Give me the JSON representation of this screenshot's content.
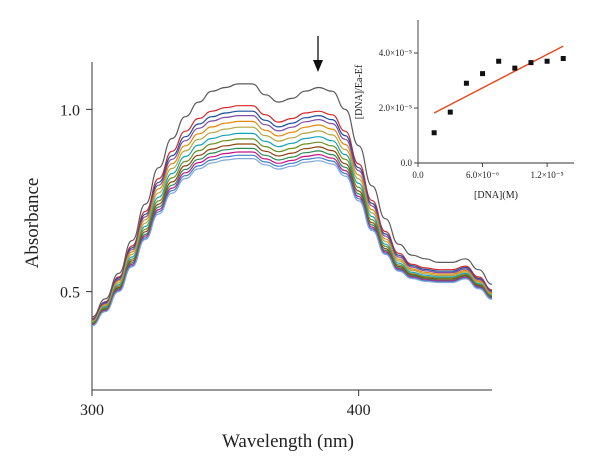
{
  "chart_data": [
    {
      "type": "line",
      "xlabel": "Wavelength (nm)",
      "ylabel": "Absorbance",
      "xlim": [
        300,
        450
      ],
      "ylim": [
        0.23,
        1.13
      ],
      "x_ticks": [
        {
          "value": 300,
          "label": "300"
        },
        {
          "value": 400,
          "label": "400"
        }
      ],
      "y_ticks": [
        {
          "value": 0.5,
          "label": "0.5"
        },
        {
          "value": 1.0,
          "label": "1.0"
        }
      ],
      "annotation": {
        "type": "arrow-down",
        "x": 385,
        "meaning": "absorbance decreases with added DNA"
      },
      "x": [
        300,
        305,
        310,
        315,
        320,
        325,
        330,
        335,
        340,
        345,
        350,
        355,
        360,
        365,
        370,
        375,
        380,
        385,
        390,
        395,
        400,
        405,
        410,
        415,
        420,
        425,
        430,
        435,
        440,
        445,
        450
      ],
      "series": [
        {
          "color": "#5b5b5b",
          "values": [
            0.43,
            0.48,
            0.55,
            0.64,
            0.74,
            0.84,
            0.92,
            0.98,
            1.02,
            1.05,
            1.06,
            1.07,
            1.07,
            1.04,
            1.02,
            1.03,
            1.05,
            1.06,
            1.05,
            1.0,
            0.9,
            0.79,
            0.7,
            0.63,
            0.6,
            0.59,
            0.58,
            0.58,
            0.59,
            0.56,
            0.52
          ]
        },
        {
          "color": "#d62728",
          "values": [
            0.425,
            0.472,
            0.54,
            0.625,
            0.72,
            0.81,
            0.885,
            0.94,
            0.975,
            0.995,
            1.005,
            1.01,
            1.01,
            0.985,
            0.965,
            0.975,
            0.99,
            0.995,
            0.985,
            0.94,
            0.85,
            0.75,
            0.665,
            0.605,
            0.575,
            0.565,
            0.56,
            0.56,
            0.57,
            0.54,
            0.505
          ]
        },
        {
          "color": "#1f4e9c",
          "values": [
            0.423,
            0.47,
            0.537,
            0.62,
            0.712,
            0.8,
            0.873,
            0.925,
            0.96,
            0.98,
            0.99,
            0.995,
            0.995,
            0.97,
            0.952,
            0.962,
            0.977,
            0.983,
            0.972,
            0.928,
            0.84,
            0.742,
            0.658,
            0.6,
            0.571,
            0.561,
            0.556,
            0.556,
            0.566,
            0.536,
            0.502
          ]
        },
        {
          "color": "#7f4fa5",
          "values": [
            0.421,
            0.467,
            0.533,
            0.615,
            0.705,
            0.792,
            0.863,
            0.914,
            0.948,
            0.968,
            0.978,
            0.983,
            0.983,
            0.958,
            0.941,
            0.951,
            0.966,
            0.972,
            0.961,
            0.918,
            0.832,
            0.735,
            0.652,
            0.595,
            0.567,
            0.557,
            0.552,
            0.552,
            0.562,
            0.533,
            0.499
          ]
        },
        {
          "color": "#e08a0b",
          "values": [
            0.419,
            0.464,
            0.529,
            0.609,
            0.697,
            0.782,
            0.851,
            0.9,
            0.933,
            0.952,
            0.962,
            0.967,
            0.967,
            0.943,
            0.927,
            0.937,
            0.951,
            0.957,
            0.946,
            0.904,
            0.82,
            0.725,
            0.645,
            0.589,
            0.562,
            0.553,
            0.548,
            0.548,
            0.558,
            0.529,
            0.496
          ]
        },
        {
          "color": "#b5a642",
          "values": [
            0.417,
            0.461,
            0.524,
            0.602,
            0.688,
            0.771,
            0.838,
            0.886,
            0.918,
            0.936,
            0.946,
            0.951,
            0.951,
            0.928,
            0.913,
            0.922,
            0.935,
            0.941,
            0.93,
            0.89,
            0.809,
            0.716,
            0.638,
            0.584,
            0.558,
            0.549,
            0.544,
            0.544,
            0.554,
            0.526,
            0.493
          ]
        },
        {
          "color": "#17a2b8",
          "values": [
            0.415,
            0.458,
            0.519,
            0.595,
            0.679,
            0.759,
            0.824,
            0.871,
            0.902,
            0.92,
            0.929,
            0.934,
            0.934,
            0.912,
            0.898,
            0.907,
            0.92,
            0.925,
            0.914,
            0.876,
            0.797,
            0.706,
            0.63,
            0.578,
            0.553,
            0.545,
            0.54,
            0.54,
            0.55,
            0.522,
            0.49
          ]
        },
        {
          "color": "#6b8e23",
          "values": [
            0.413,
            0.455,
            0.515,
            0.589,
            0.671,
            0.749,
            0.812,
            0.857,
            0.887,
            0.905,
            0.914,
            0.919,
            0.919,
            0.898,
            0.884,
            0.893,
            0.905,
            0.91,
            0.9,
            0.863,
            0.786,
            0.697,
            0.624,
            0.573,
            0.549,
            0.541,
            0.537,
            0.537,
            0.547,
            0.519,
            0.488
          ]
        },
        {
          "color": "#8b4513",
          "values": [
            0.411,
            0.452,
            0.511,
            0.584,
            0.664,
            0.74,
            0.801,
            0.845,
            0.874,
            0.891,
            0.9,
            0.905,
            0.905,
            0.885,
            0.872,
            0.88,
            0.892,
            0.897,
            0.887,
            0.851,
            0.776,
            0.689,
            0.618,
            0.569,
            0.546,
            0.538,
            0.534,
            0.534,
            0.544,
            0.517,
            0.486
          ]
        },
        {
          "color": "#2e8b57",
          "values": [
            0.409,
            0.45,
            0.508,
            0.579,
            0.657,
            0.732,
            0.792,
            0.835,
            0.863,
            0.88,
            0.889,
            0.893,
            0.893,
            0.874,
            0.861,
            0.869,
            0.881,
            0.886,
            0.876,
            0.841,
            0.768,
            0.683,
            0.613,
            0.565,
            0.543,
            0.535,
            0.531,
            0.531,
            0.541,
            0.514,
            0.484
          ]
        },
        {
          "color": "#c71585",
          "values": [
            0.408,
            0.448,
            0.505,
            0.575,
            0.652,
            0.725,
            0.784,
            0.826,
            0.854,
            0.87,
            0.879,
            0.883,
            0.883,
            0.864,
            0.852,
            0.86,
            0.871,
            0.876,
            0.866,
            0.832,
            0.761,
            0.677,
            0.609,
            0.562,
            0.54,
            0.532,
            0.529,
            0.529,
            0.539,
            0.512,
            0.482
          ]
        },
        {
          "color": "#3d7fc4",
          "values": [
            0.407,
            0.446,
            0.502,
            0.571,
            0.647,
            0.719,
            0.777,
            0.818,
            0.845,
            0.861,
            0.87,
            0.874,
            0.874,
            0.856,
            0.844,
            0.852,
            0.863,
            0.867,
            0.858,
            0.824,
            0.755,
            0.672,
            0.605,
            0.559,
            0.538,
            0.53,
            0.527,
            0.527,
            0.537,
            0.51,
            0.481
          ]
        },
        {
          "color": "#7fa8d8",
          "values": [
            0.406,
            0.445,
            0.5,
            0.568,
            0.643,
            0.713,
            0.77,
            0.81,
            0.837,
            0.853,
            0.861,
            0.865,
            0.865,
            0.848,
            0.836,
            0.844,
            0.855,
            0.859,
            0.85,
            0.817,
            0.749,
            0.668,
            0.602,
            0.556,
            0.536,
            0.528,
            0.525,
            0.525,
            0.535,
            0.508,
            0.479
          ]
        }
      ]
    },
    {
      "type": "scatter",
      "xlabel": "[DNA](M)",
      "ylabel": "[DNA]/Ea-Ef",
      "xlim": [
        0,
        1.45e-05
      ],
      "ylim": [
        0,
        5.2e-05
      ],
      "x_ticks": [
        {
          "value": 0,
          "label": "0.0"
        },
        {
          "value": 6e-06,
          "label": "6.0×10⁻⁶"
        },
        {
          "value": 1.2e-05,
          "label": "1.2×10⁻⁵"
        }
      ],
      "y_ticks": [
        {
          "value": 0,
          "label": "0.0"
        },
        {
          "value": 2e-05,
          "label": "2.0×10⁻⁵"
        },
        {
          "value": 4e-05,
          "label": "4.0×10⁻⁵"
        }
      ],
      "points": {
        "x": [
          1.5e-06,
          3e-06,
          4.5e-06,
          6e-06,
          7.5e-06,
          9e-06,
          1.05e-05,
          1.2e-05,
          1.35e-05
        ],
        "y": [
          1.1e-05,
          1.85e-05,
          2.9e-05,
          3.25e-05,
          3.7e-05,
          3.45e-05,
          3.65e-05,
          3.7e-05,
          3.8e-05
        ]
      },
      "fit_line": {
        "x": [
          1.5e-06,
          1.35e-05
        ],
        "y": [
          1.82e-05,
          4.25e-05
        ],
        "color": "#e8481c"
      }
    }
  ]
}
